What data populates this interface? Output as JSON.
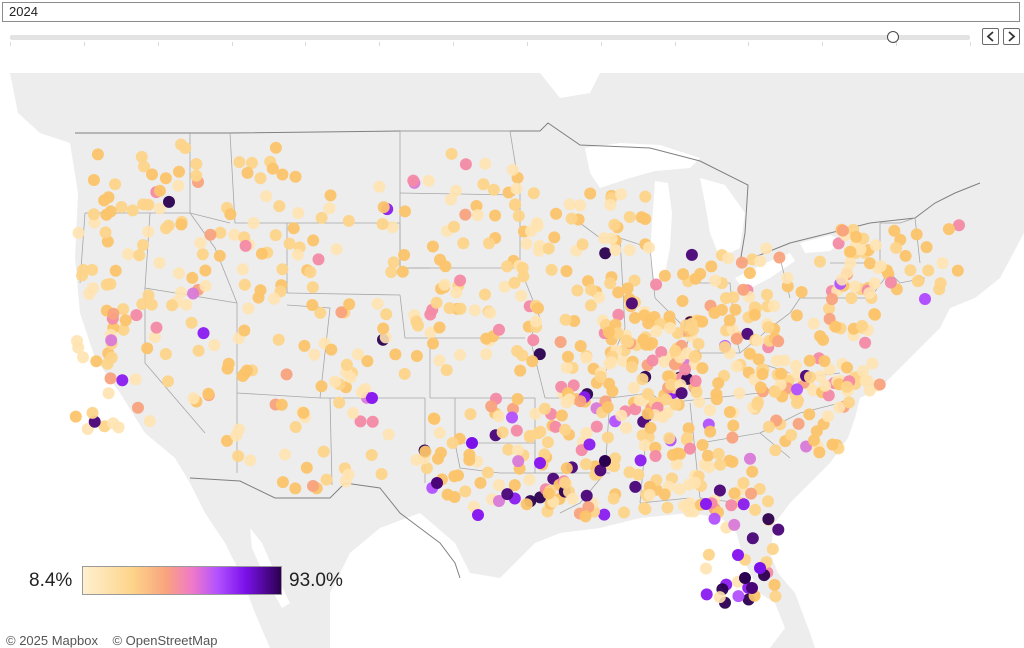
{
  "year_filter": {
    "value": "2024"
  },
  "slider": {
    "tick_count": 14,
    "position_fraction": 0.92
  },
  "controls": {
    "prev_label": "previous",
    "next_label": "next"
  },
  "map": {
    "region": "contiguous United States",
    "colors": {
      "land": "#ededed",
      "water": "#ffffff",
      "state_border": "#9c9c9c",
      "country_border": "#808080",
      "marker_stroke": "none"
    }
  },
  "legend": {
    "min_label": "8.4%",
    "max_label": "93.0%",
    "scale_stops": [
      "#fff0cf",
      "#fdd48a",
      "#f9a37e",
      "#f07ac8",
      "#b251ff",
      "#7b11ea",
      "#2b0050"
    ]
  },
  "attribution": {
    "mapbox": "© 2025 Mapbox",
    "osm": "© OpenStreetMap"
  }
}
